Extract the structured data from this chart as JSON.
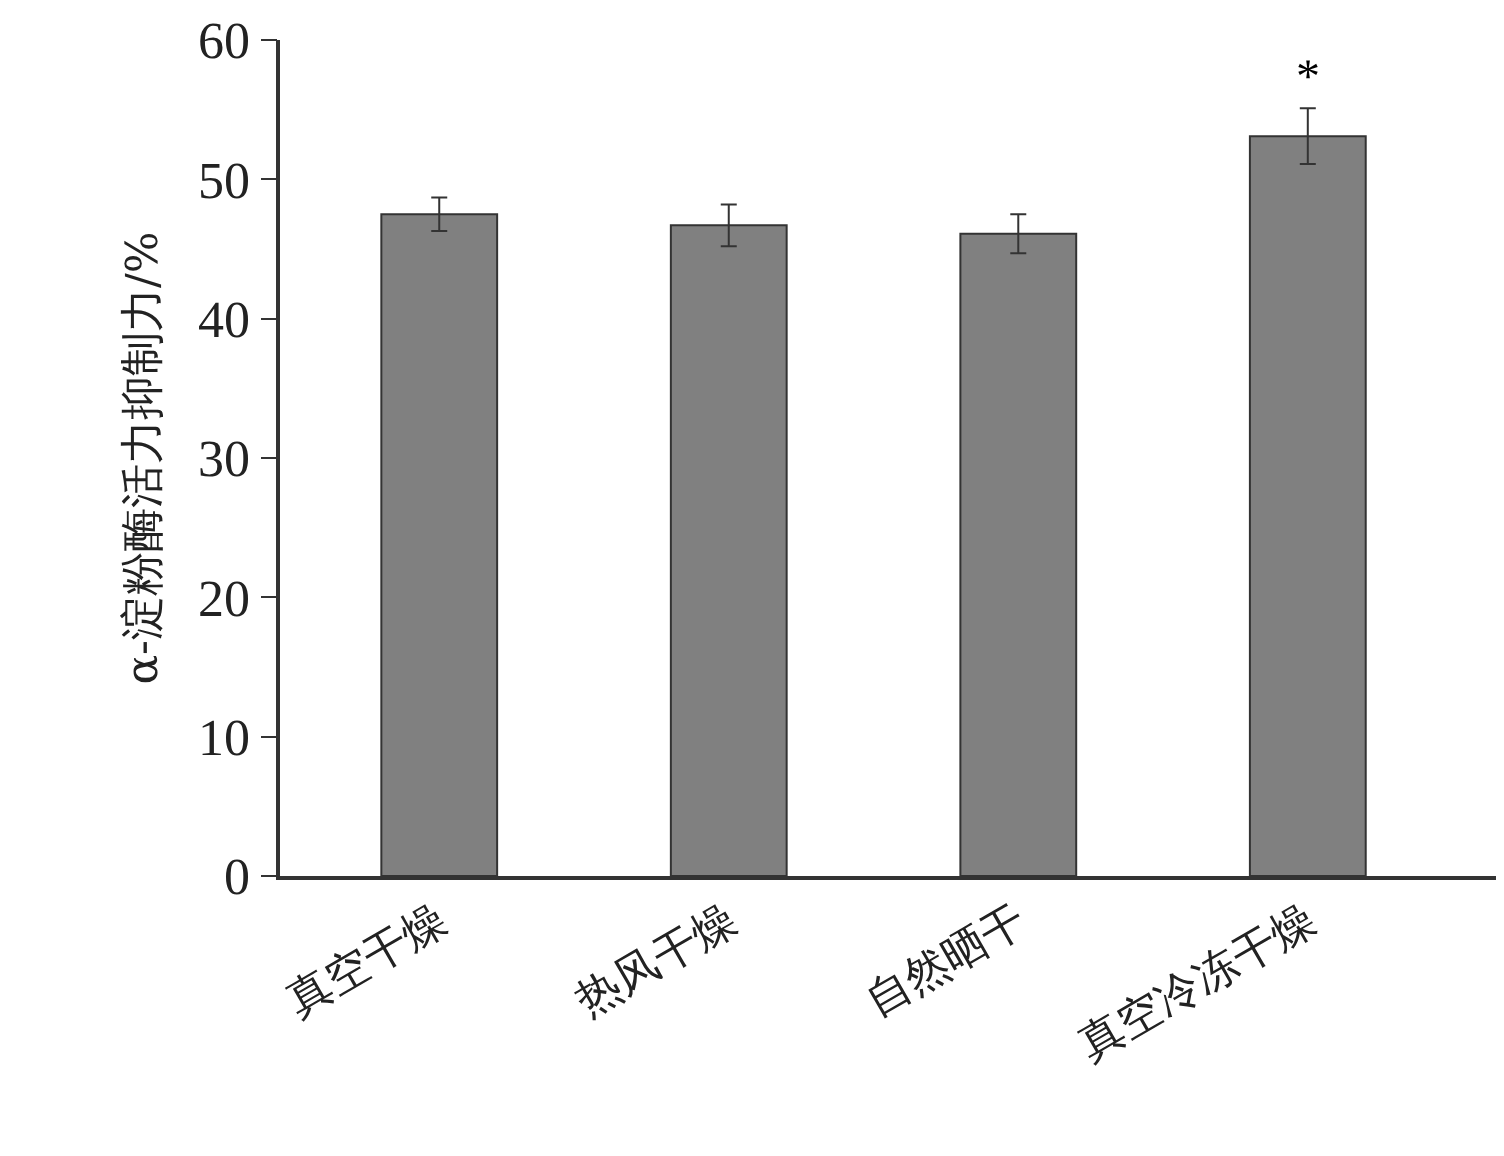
{
  "chart_data": {
    "type": "bar",
    "ylabel": "α-淀粉酶活力抑制力/%",
    "categories": [
      "真空干燥",
      "热风干燥",
      "自然晒干",
      "真空冷冻干燥"
    ],
    "values": [
      47.5,
      46.7,
      46.1,
      53.1
    ],
    "errors": [
      1.2,
      1.5,
      1.4,
      2.0
    ],
    "color": "#808080",
    "ylim": [
      0,
      60
    ],
    "yticks": [
      0,
      10,
      20,
      30,
      40,
      50,
      60
    ],
    "grid": false,
    "annotations": [
      {
        "text": "*",
        "x": "真空冷冻干燥",
        "y": 55.1
      }
    ]
  }
}
